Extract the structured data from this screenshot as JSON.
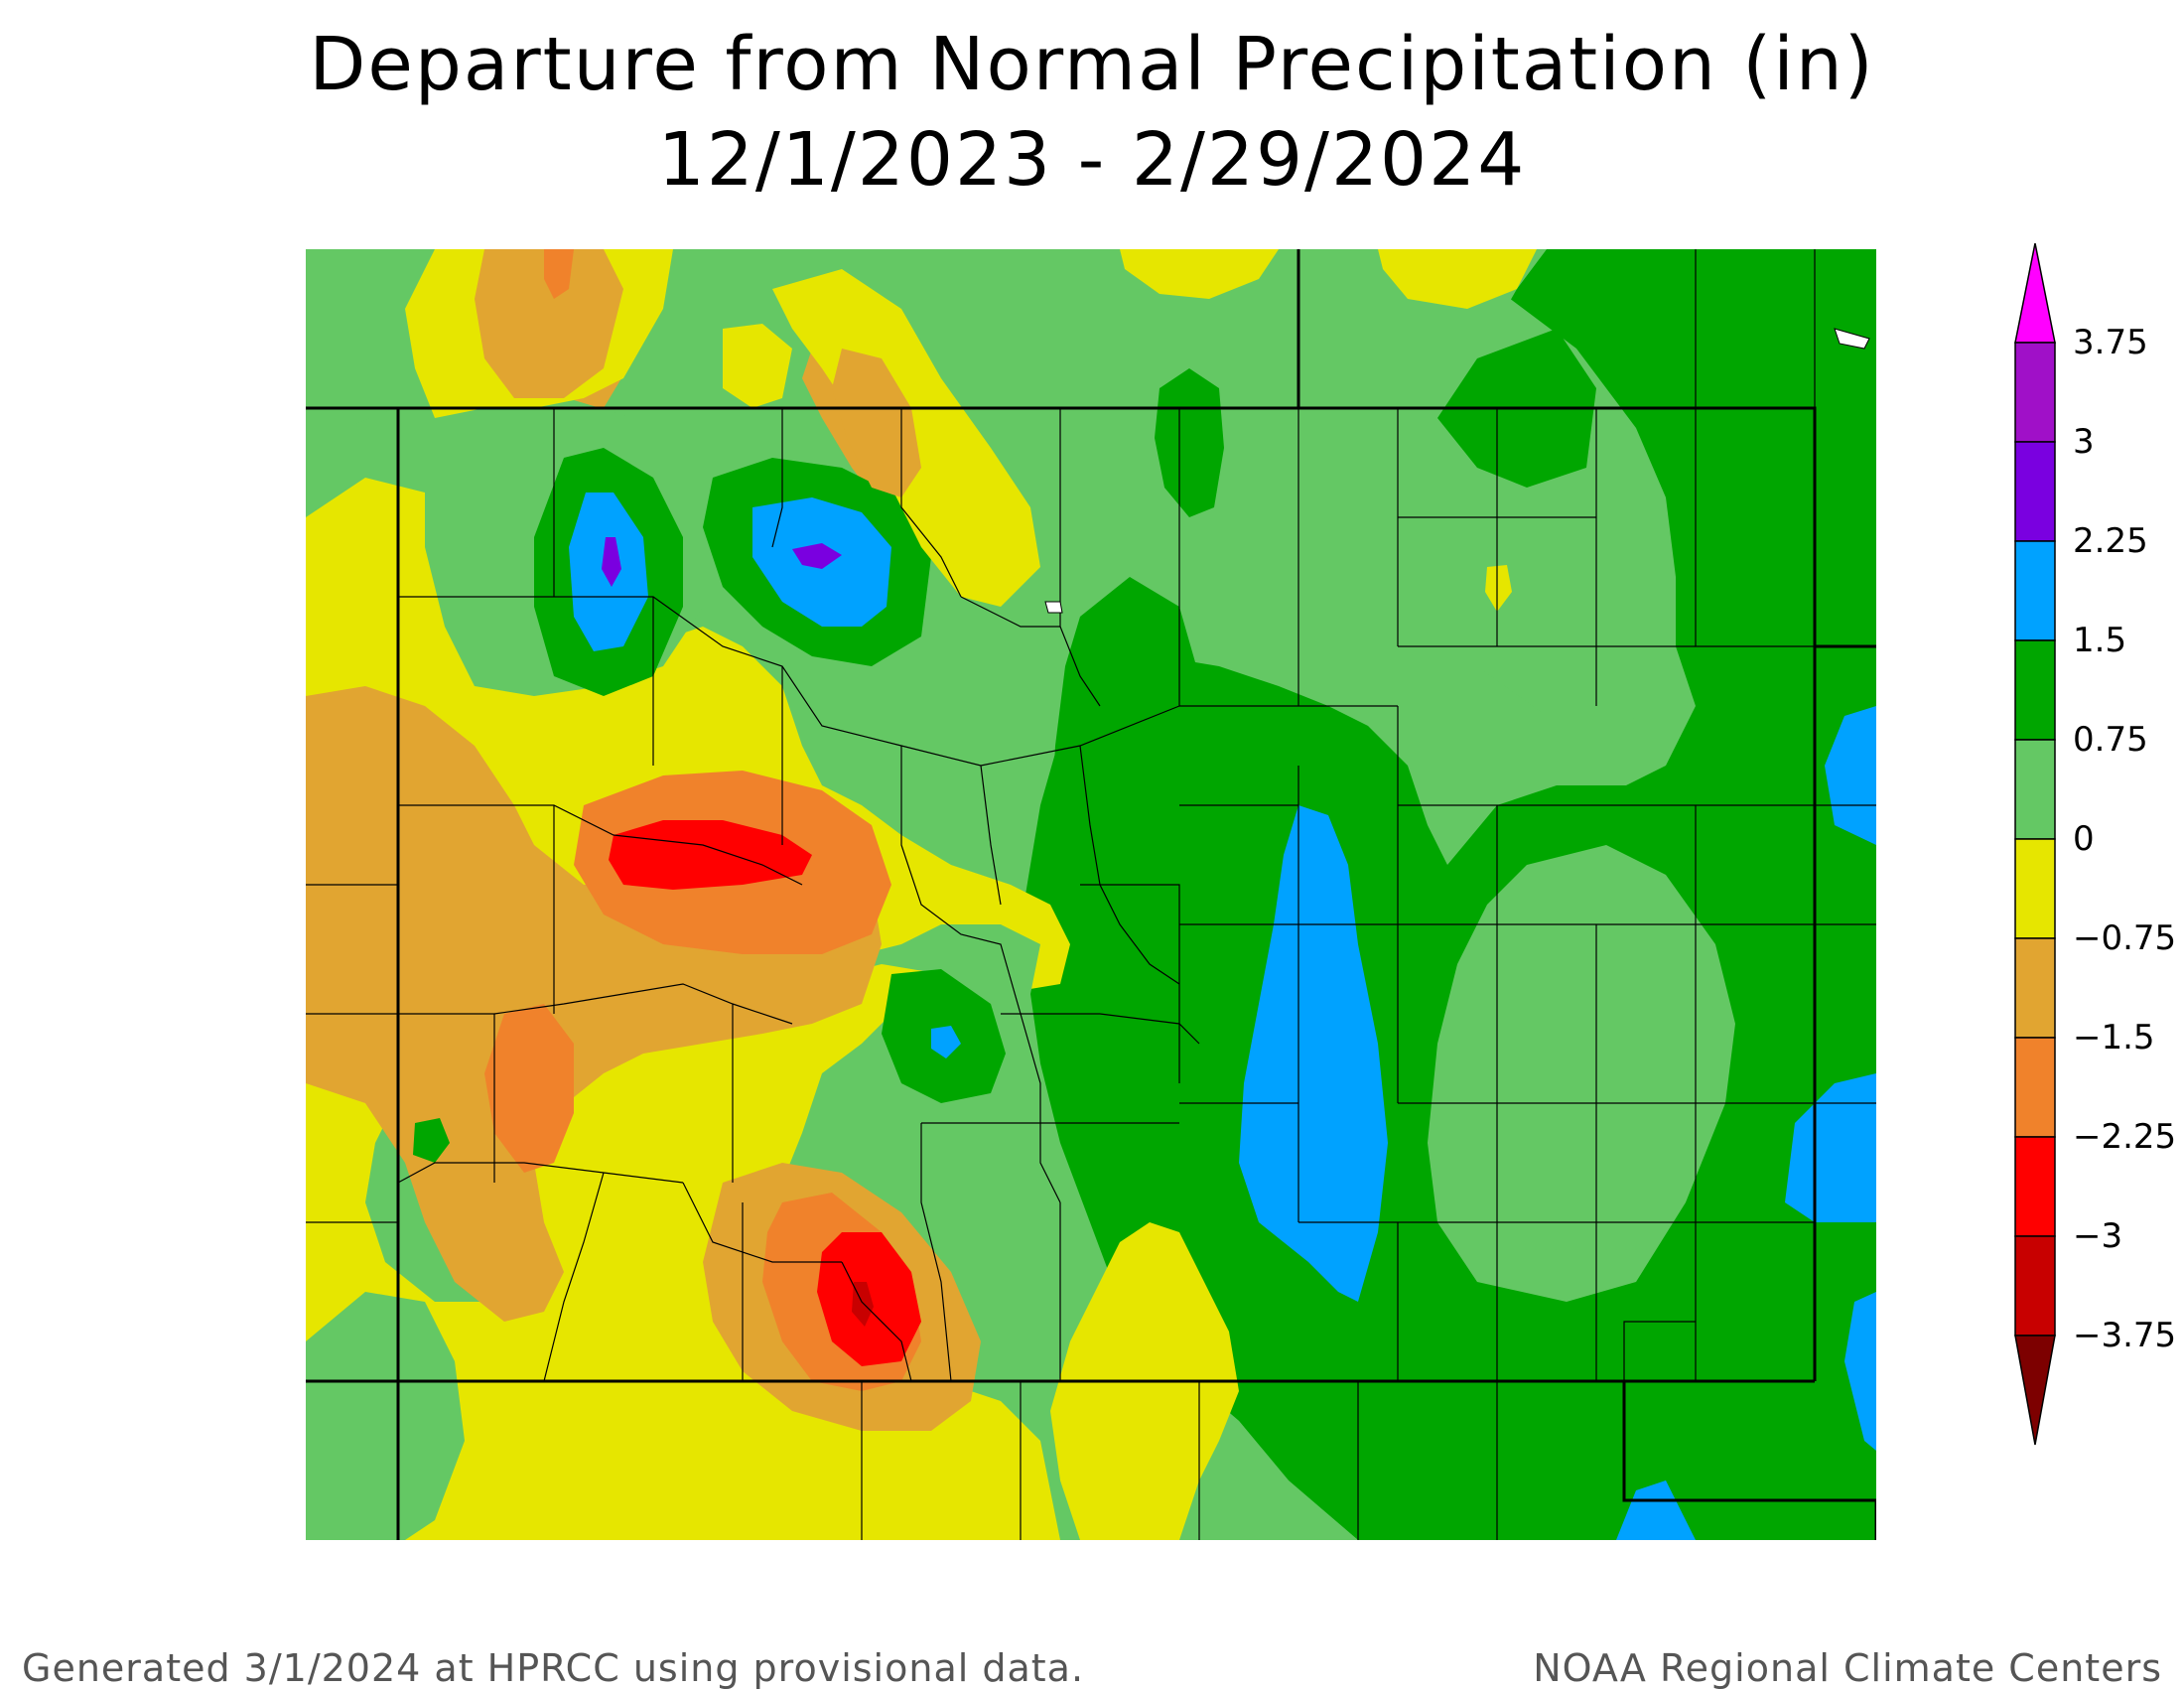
{
  "title": {
    "line1": "Departure from Normal Precipitation (in)",
    "line2": "12/1/2023 - 2/29/2024"
  },
  "legend": {
    "labels": [
      "3.75",
      "3",
      "2.25",
      "1.5",
      "0.75",
      "0",
      "−0.75",
      "−1.5",
      "−2.25",
      "−3",
      "−3.75"
    ],
    "colors": {
      "above_3_75": "#ff00ff",
      "3_to_3_75": "#a010c8",
      "2_25_to_3": "#7a00e0",
      "1_5_to_2_25": "#00a2ff",
      "0_75_to_1_5": "#00a600",
      "0_to_0_75": "#64c864",
      "neg0_75_to_0": "#e6e600",
      "neg1_5_to_neg0_75": "#e1a531",
      "neg2_25_to_neg1_5": "#f0822b",
      "neg3_to_neg2_25": "#ff0000",
      "neg3_75_to_neg3": "#c80000",
      "below_neg3_75": "#7d0000"
    }
  },
  "footer": {
    "left": "Generated 3/1/2024 at HPRCC using provisional data.",
    "right": "NOAA Regional Climate Centers"
  }
}
